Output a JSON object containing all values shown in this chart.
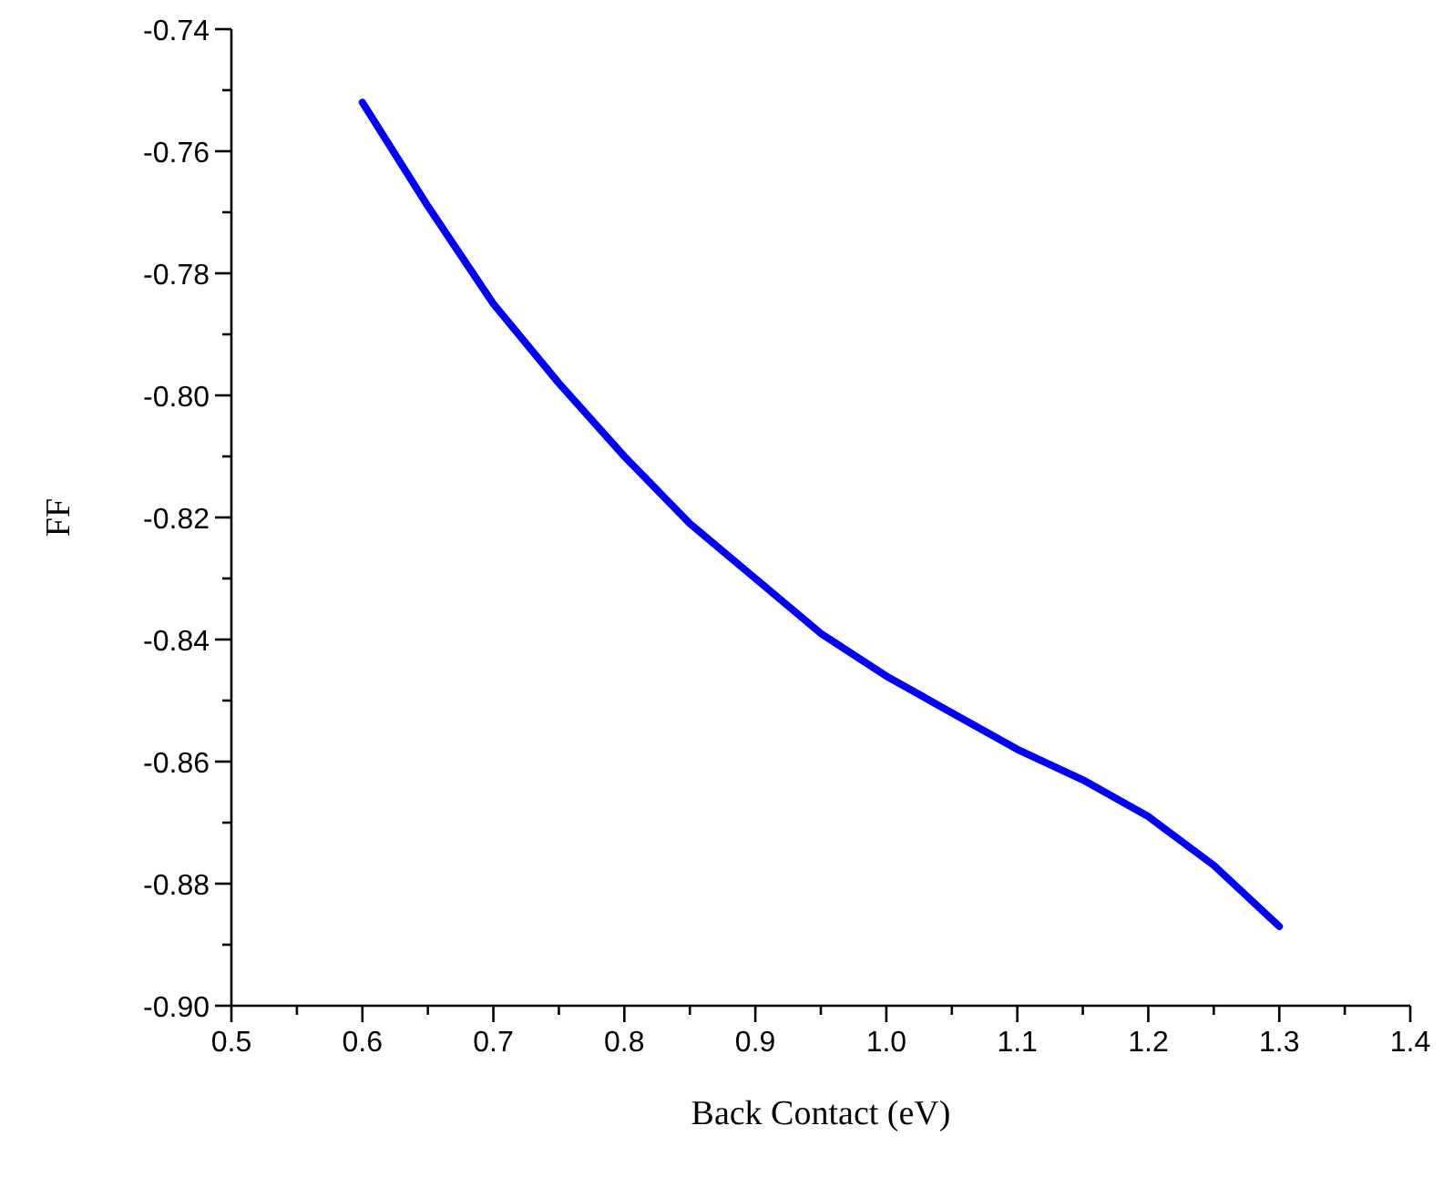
{
  "chart_data": {
    "type": "line",
    "xlabel": "Back Contact (eV)",
    "ylabel": "FF",
    "x": [
      0.6,
      0.65,
      0.7,
      0.75,
      0.8,
      0.85,
      0.9,
      0.95,
      1.0,
      1.05,
      1.1,
      1.15,
      1.2,
      1.25,
      1.3
    ],
    "series": [
      {
        "color": "#0000ff",
        "values": [
          -0.752,
          -0.769,
          -0.785,
          -0.798,
          -0.81,
          -0.821,
          -0.83,
          -0.839,
          -0.846,
          -0.852,
          -0.858,
          -0.863,
          -0.869,
          -0.877,
          -0.887
        ]
      }
    ],
    "xlim": [
      0.5,
      1.4
    ],
    "ylim": [
      -0.9,
      -0.74
    ],
    "xticks": [
      {
        "value": 0.5,
        "label": "0.5"
      },
      {
        "value": 0.55,
        "label": null
      },
      {
        "value": 0.6,
        "label": "0.6"
      },
      {
        "value": 0.65,
        "label": null
      },
      {
        "value": 0.7,
        "label": "0.7"
      },
      {
        "value": 0.75,
        "label": null
      },
      {
        "value": 0.8,
        "label": "0.8"
      },
      {
        "value": 0.85,
        "label": null
      },
      {
        "value": 0.9,
        "label": "0.9"
      },
      {
        "value": 0.95,
        "label": null
      },
      {
        "value": 1.0,
        "label": "1.0"
      },
      {
        "value": 1.05,
        "label": null
      },
      {
        "value": 1.1,
        "label": "1.1"
      },
      {
        "value": 1.15,
        "label": null
      },
      {
        "value": 1.2,
        "label": "1.2"
      },
      {
        "value": 1.25,
        "label": null
      },
      {
        "value": 1.3,
        "label": "1.3"
      },
      {
        "value": 1.35,
        "label": null
      },
      {
        "value": 1.4,
        "label": "1.4"
      }
    ],
    "yticks": [
      {
        "value": -0.9,
        "label": "-0.90"
      },
      {
        "value": -0.89,
        "label": null
      },
      {
        "value": -0.88,
        "label": "-0.88"
      },
      {
        "value": -0.87,
        "label": null
      },
      {
        "value": -0.86,
        "label": "-0.86"
      },
      {
        "value": -0.85,
        "label": null
      },
      {
        "value": -0.84,
        "label": "-0.84"
      },
      {
        "value": -0.83,
        "label": null
      },
      {
        "value": -0.82,
        "label": "-0.82"
      },
      {
        "value": -0.81,
        "label": null
      },
      {
        "value": -0.8,
        "label": "-0.80"
      },
      {
        "value": -0.79,
        "label": null
      },
      {
        "value": -0.78,
        "label": "-0.78"
      },
      {
        "value": -0.77,
        "label": null
      },
      {
        "value": -0.76,
        "label": "-0.76"
      },
      {
        "value": -0.75,
        "label": null
      },
      {
        "value": -0.74,
        "label": "-0.74"
      }
    ],
    "line_style": "solid"
  }
}
